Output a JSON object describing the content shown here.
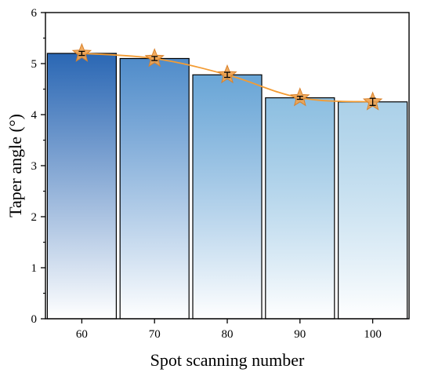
{
  "chart_data": {
    "type": "bar",
    "xlabel": "Spot scanning number",
    "ylabel": "Taper angle (°)",
    "categories": [
      "60",
      "70",
      "80",
      "90",
      "100"
    ],
    "values": [
      5.2,
      5.1,
      4.78,
      4.33,
      4.25
    ],
    "errors": [
      0.04,
      0.04,
      0.05,
      0.03,
      0.07
    ],
    "ylim": [
      0,
      6
    ],
    "yticks": [
      "0",
      "1",
      "2",
      "3",
      "4",
      "5",
      "6"
    ],
    "grid": false,
    "legend": "none",
    "overlay": {
      "type": "line",
      "marker": "star",
      "values": [
        5.2,
        5.1,
        4.78,
        4.33,
        4.25
      ]
    },
    "colors": {
      "bar_gradient": [
        "#1f5fb0",
        "#3c7fc4",
        "#4e95cf",
        "#6faed9",
        "#8fc1e1"
      ],
      "bar_top_saturation": [
        0.95,
        0.9,
        0.85,
        0.8,
        0.75
      ],
      "line": "#f39c34",
      "marker_fill": "#f0a350",
      "marker_stroke": "#d9822b"
    }
  }
}
